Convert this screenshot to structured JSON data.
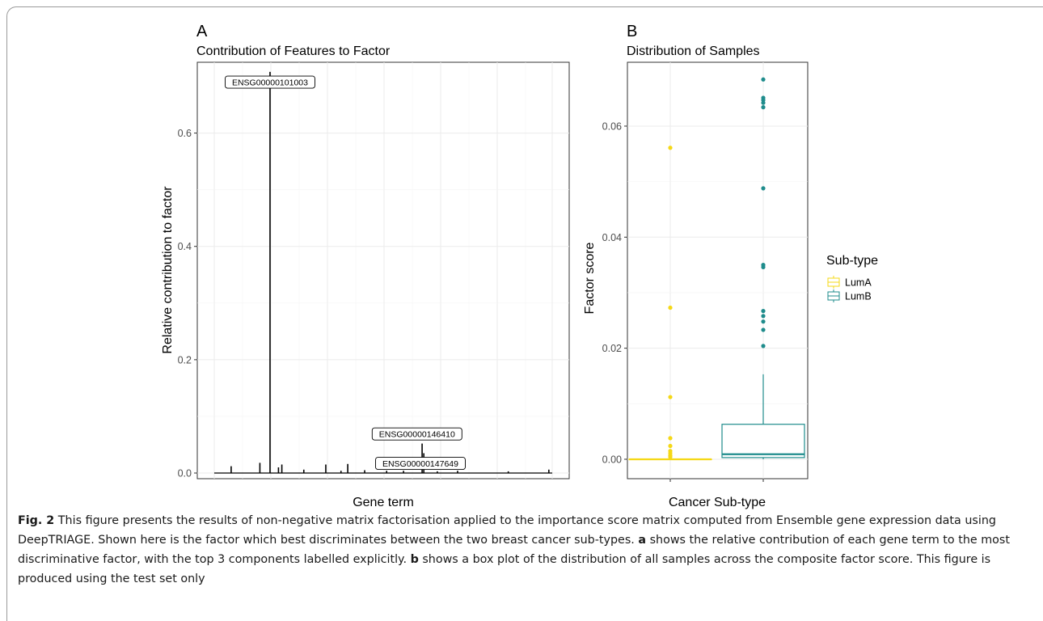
{
  "figure": {
    "caption": {
      "label": "Fig. 2",
      "text_1": " This figure presents the results of non-negative matrix factorisation applied to the importance score matrix computed from Ensemble gene expression data using DeepTRIAGE. Shown here is the factor which best discriminates between the two breast cancer sub-types. ",
      "ref_a": "a",
      "text_2": " shows the relative contribution of each gene term to the most discriminative factor, with the top 3 components labelled explicitly. ",
      "ref_b": "b",
      "text_3": " shows a box plot of the distribution of all samples across the composite factor score. This figure is produced using the test set only"
    }
  },
  "chart_data": [
    {
      "panel": "A",
      "type": "bar",
      "title": "Contribution of Features to Factor",
      "xlabel": "Gene term",
      "ylabel": "Relative contribution to factor",
      "ylim": [
        -0.01,
        0.725
      ],
      "yticks": [
        0.0,
        0.2,
        0.4,
        0.6
      ],
      "ytick_labels": [
        "0.0",
        "0.2",
        "0.4",
        "0.6"
      ],
      "grid": true,
      "bars": [
        {
          "x": 0.05,
          "y": 0.012
        },
        {
          "x": 0.135,
          "y": 0.018
        },
        {
          "x": 0.165,
          "y": 0.708
        },
        {
          "x": 0.19,
          "y": 0.01
        },
        {
          "x": 0.2,
          "y": 0.015
        },
        {
          "x": 0.265,
          "y": 0.006
        },
        {
          "x": 0.33,
          "y": 0.015
        },
        {
          "x": 0.375,
          "y": 0.004
        },
        {
          "x": 0.395,
          "y": 0.016
        },
        {
          "x": 0.445,
          "y": 0.005
        },
        {
          "x": 0.51,
          "y": 0.004
        },
        {
          "x": 0.56,
          "y": 0.004
        },
        {
          "x": 0.615,
          "y": 0.052
        },
        {
          "x": 0.62,
          "y": 0.035
        },
        {
          "x": 0.66,
          "y": 0.003
        },
        {
          "x": 0.72,
          "y": 0.004
        },
        {
          "x": 0.87,
          "y": 0.003
        },
        {
          "x": 0.99,
          "y": 0.006
        }
      ],
      "labels": [
        {
          "text": "ENSG00000101003",
          "x": 0.165,
          "y": 0.69
        },
        {
          "text": "ENSG00000146410",
          "x": 0.6,
          "y": 0.069
        },
        {
          "text": "ENSG00000147649",
          "x": 0.61,
          "y": 0.017
        }
      ]
    },
    {
      "panel": "B",
      "type": "boxplot",
      "title": "Distribution of Samples",
      "xlabel": "Cancer Sub-type",
      "ylabel": "Factor score",
      "ylim": [
        -0.0035,
        0.0715
      ],
      "yticks": [
        0.0,
        0.02,
        0.04,
        0.06
      ],
      "ytick_labels": [
        "0.00",
        "0.02",
        "0.04",
        "0.06"
      ],
      "grid": true,
      "legend": {
        "title": "Sub-type",
        "placement": "right"
      },
      "series": [
        {
          "name": "LumA",
          "color": "#F5D816",
          "box": {
            "q1": 0.0,
            "median": 0.0,
            "q3": 0.0,
            "whisker_low": 0.0,
            "whisker_high": 0.0
          },
          "outliers": [
            0.0561,
            0.0273,
            0.0112,
            0.0038,
            0.0024,
            0.0015,
            0.0011,
            0.0007,
            0.0004
          ]
        },
        {
          "name": "LumB",
          "color": "#1F8C8C",
          "box": {
            "q1": 0.0003,
            "median": 0.0009,
            "q3": 0.0063,
            "whisker_low": 0.0,
            "whisker_high": 0.0153
          },
          "outliers": [
            0.0684,
            0.0651,
            0.0647,
            0.0642,
            0.0634,
            0.0488,
            0.035,
            0.0346,
            0.0267,
            0.0258,
            0.0248,
            0.0233,
            0.0204
          ]
        }
      ]
    }
  ]
}
